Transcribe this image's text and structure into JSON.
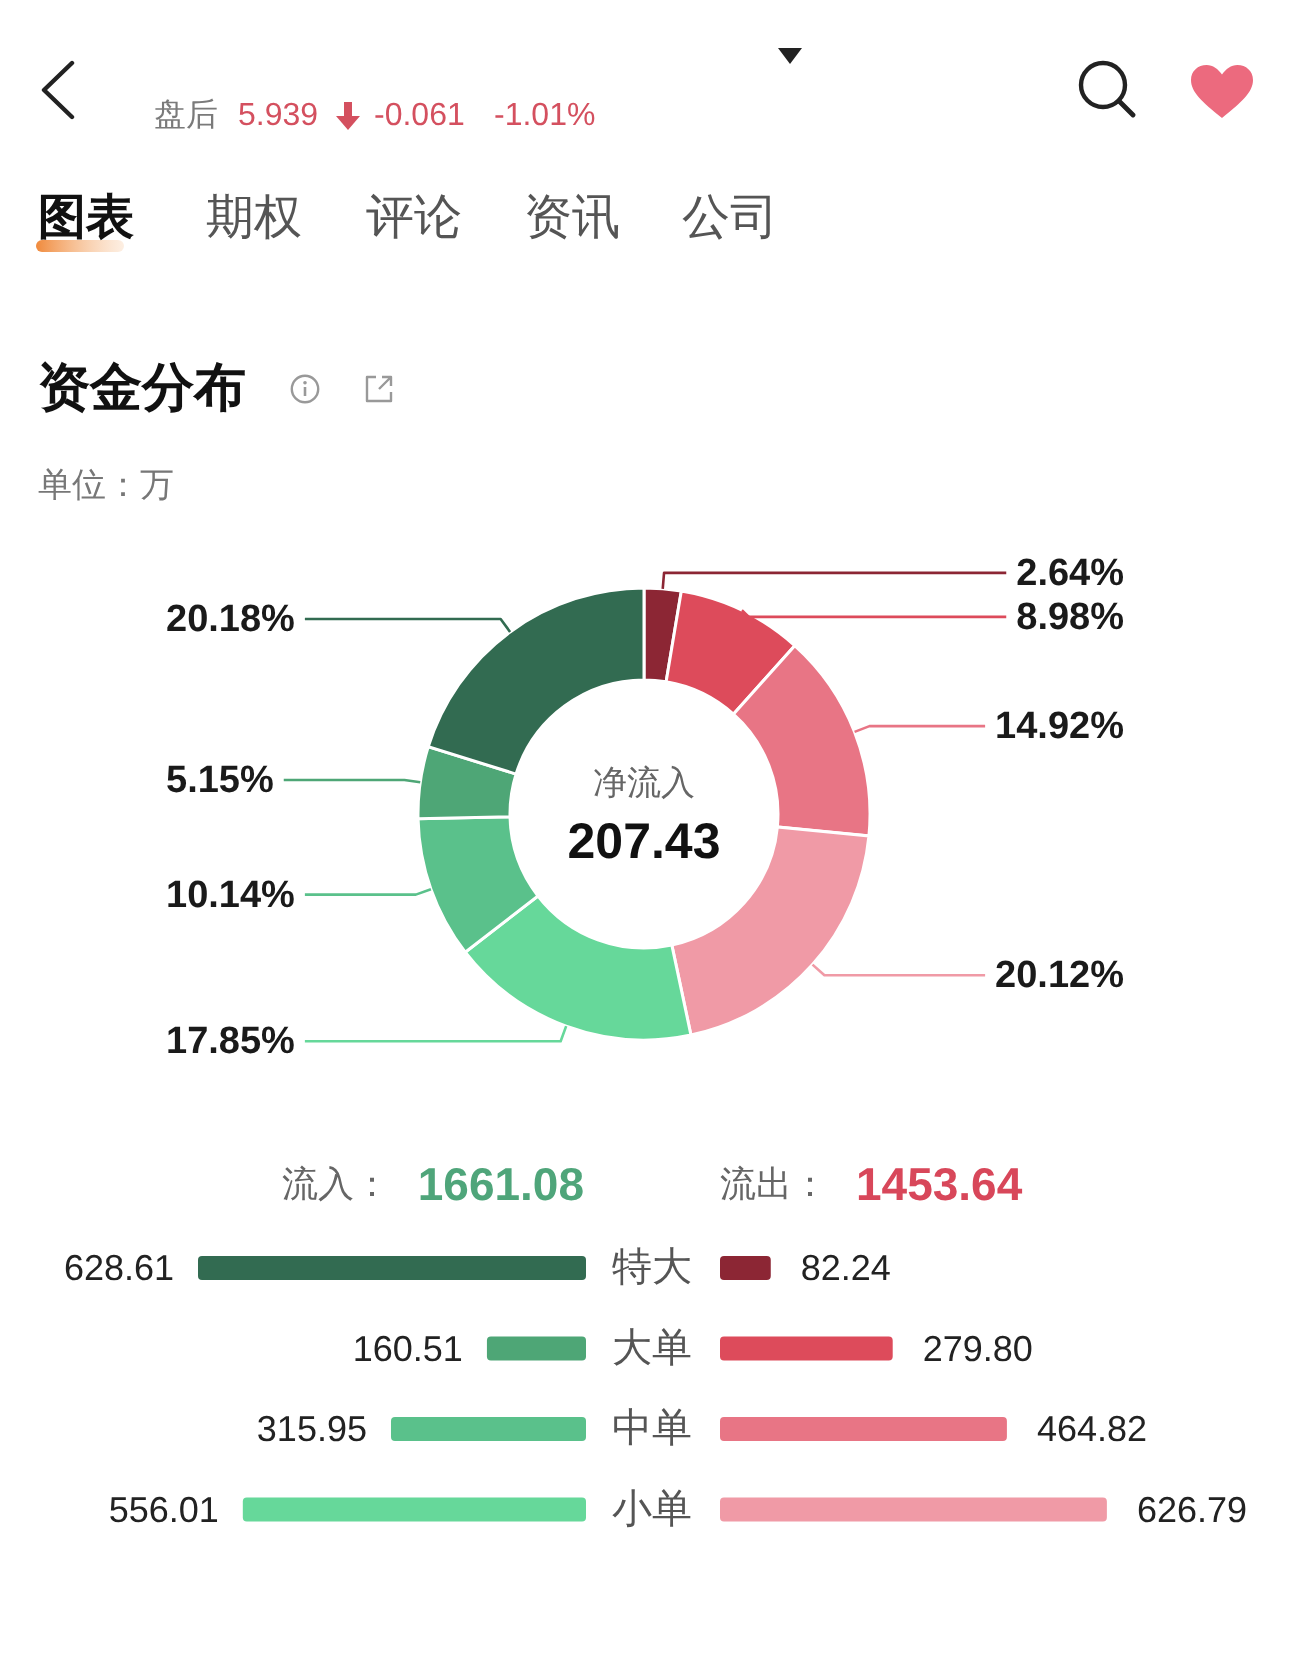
{
  "chart_data": [
    {
      "type": "other",
      "annotations": [
        "盘后",
        "5.939",
        "-0.061",
        "-1.01%",
        "图表",
        "期权",
        "评论",
        "资讯",
        "公司"
      ]
    },
    {
      "type": "donut",
      "title": "资金分布",
      "subtitle": "单位：万",
      "annotations": [
        "净流入",
        "207.43"
      ],
      "categories": [
        null,
        null,
        null,
        null,
        null,
        null,
        null,
        null
      ],
      "values": [
        2.64,
        8.98,
        14.92,
        20.12,
        17.85,
        10.14,
        5.15,
        20.18
      ],
      "colors": [
        "#8c2634",
        "#dd4b5b",
        "#e87585",
        "#f09aa6",
        "#66d89a",
        "#5ac18b",
        "#4ea676",
        "#326b51"
      ],
      "value_labels": [
        "2.64%",
        "8.98%",
        "14.92%",
        "20.12%",
        "17.85%",
        "10.14%",
        "5.15%",
        "20.18%"
      ]
    },
    {
      "type": "bar",
      "orientation": "horizontal",
      "tick_labels": "y",
      "categories": [
        "特大",
        "大单",
        "中单",
        "小单"
      ],
      "colors": [
        "#326b51",
        "#4ea676",
        "#5ac18b",
        "#66d89a"
      ],
      "values": [
        628.61,
        160.51,
        315.95,
        556.01
      ],
      "value_labels": [
        "628.61",
        "160.51",
        "315.95",
        "556.01"
      ],
      "annotations": [
        "流入：",
        "1661.08"
      ]
    },
    {
      "type": "bar",
      "orientation": "horizontal",
      "tick_labels": false,
      "categories": [
        null,
        null,
        null,
        null
      ],
      "colors": [
        "#8c2634",
        "#dd4b5b",
        "#e87585",
        "#f09aa6"
      ],
      "values": [
        82.24,
        279.8,
        464.82,
        626.79
      ],
      "value_labels": [
        "82.24",
        "279.80",
        "464.82",
        "626.79"
      ],
      "annotations": [
        "流出：",
        "1453.64"
      ]
    }
  ]
}
